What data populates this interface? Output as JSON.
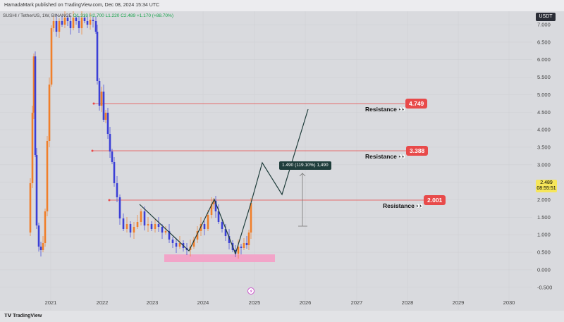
{
  "header": {
    "publisher": "HamadaMark published on TradingView.com, Dec 08, 2024 15:34 UTC",
    "symbol": "SUSHI / TetherUS, 1W, BINANCE",
    "ohlc": "O1.319 H2.700 L1.220 C2.489 +1.170 (+88.70%)",
    "currency": "USDT"
  },
  "price_scale": {
    "ticks": [
      "7.000",
      "6.500",
      "6.000",
      "5.500",
      "5.000",
      "4.500",
      "4.000",
      "3.500",
      "3.000",
      "2.500",
      "2.000",
      "1.500",
      "1.000",
      "0.500",
      "0.000",
      "-0.500"
    ],
    "current_price": "2.489",
    "countdown": "08:55:51"
  },
  "time_axis": {
    "ticks": [
      "2021",
      "2022",
      "2023",
      "2024",
      "2025",
      "2026",
      "2027",
      "2028",
      "2029",
      "2030"
    ]
  },
  "annotations": {
    "resistances": [
      {
        "label": "Resistance",
        "value": "4.749",
        "icon": "eyes-emoji"
      },
      {
        "label": "Resistance",
        "value": "3.388",
        "icon": "eyes-emoji"
      },
      {
        "label": "Resistance",
        "value": "2.001",
        "icon": "eyes-emoji"
      }
    ],
    "measure": "1.490 (119.10%) 1,490"
  },
  "footer": {
    "logo": "TradingView"
  },
  "colors": {
    "background": "#d9dade",
    "up_candle": "#f07f2a",
    "down_candle": "#3b3fd6",
    "resistance": "#e84a4a",
    "support_zone": "#f2a4c8",
    "projection": "#1f3d3b"
  }
}
